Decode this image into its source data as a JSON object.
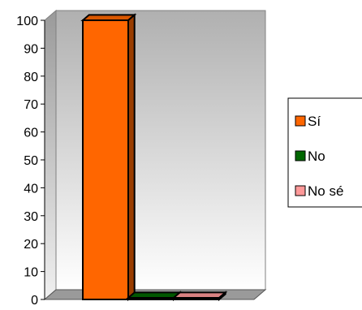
{
  "chart_data": {
    "type": "bar",
    "style": "3d-column",
    "categories": [
      "Sí",
      "No",
      "No sé"
    ],
    "values": [
      100,
      0,
      0
    ],
    "colors": [
      "#ff6600",
      "#006600",
      "#ff9999"
    ],
    "ylim": [
      0,
      100
    ],
    "yticks": [
      "0",
      "10",
      "20",
      "30",
      "40",
      "50",
      "60",
      "70",
      "80",
      "90",
      "100"
    ],
    "grid": false,
    "legend": {
      "position": "right",
      "entries": [
        "Sí",
        "No",
        "No sé"
      ]
    },
    "title": "",
    "xlabel": "",
    "ylabel": ""
  }
}
